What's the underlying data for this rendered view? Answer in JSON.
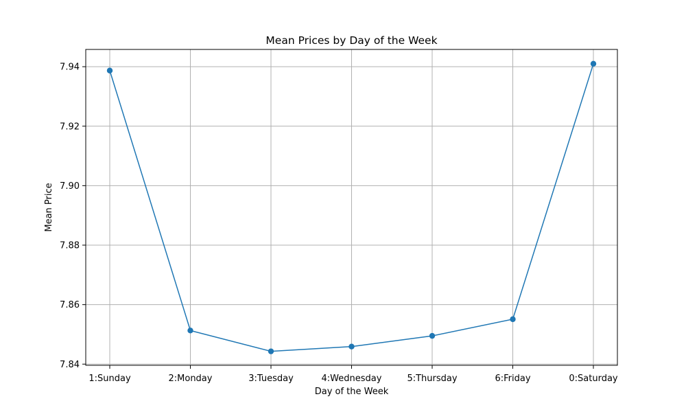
{
  "chart_data": {
    "type": "line",
    "title": "Mean Prices by Day of the Week",
    "xlabel": "Day of the Week",
    "ylabel": "Mean Price",
    "categories": [
      "1:Sunday",
      "2:Monday",
      "3:Tuesday",
      "4:Wednesday",
      "5:Thursday",
      "6:Friday",
      "0:Saturday"
    ],
    "series": [
      {
        "values": [
          7.9387,
          7.8513,
          7.8443,
          7.8459,
          7.8495,
          7.8551,
          7.941
        ],
        "color": "#1f77b4",
        "marker": "circle"
      }
    ],
    "yticks": [
      7.84,
      7.86,
      7.88,
      7.9,
      7.92,
      7.94
    ],
    "ytick_labels": [
      "7.84",
      "7.86",
      "7.88",
      "7.90",
      "7.92",
      "7.94"
    ],
    "ylim": [
      7.8396,
      7.9458
    ],
    "grid": true
  }
}
